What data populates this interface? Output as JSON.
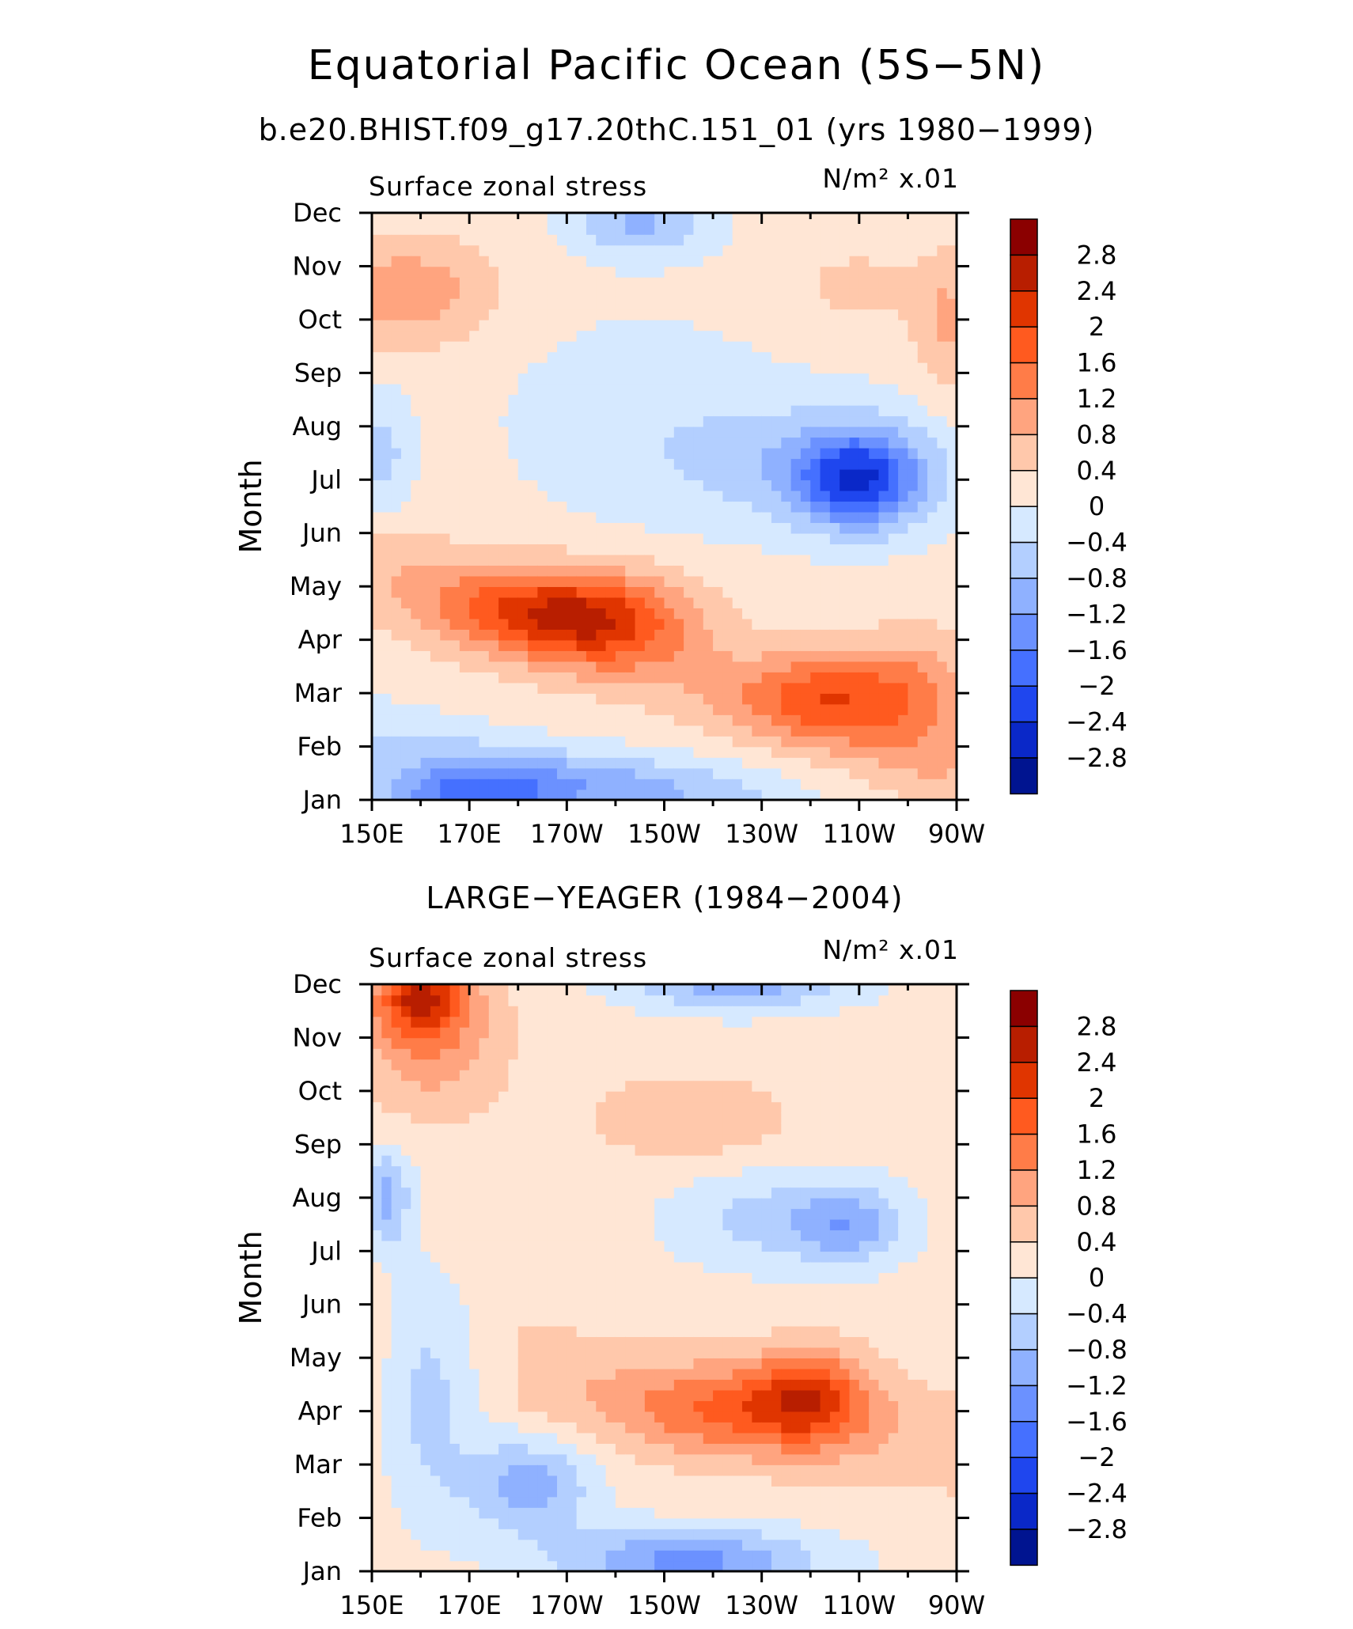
{
  "figure": {
    "title": "Equatorial Pacific Ocean (5S−5N)",
    "subtitle": "b.e20.BHIST.f09_g17.20thC.151_01 (yrs 1980−1999)"
  },
  "chart_data": [
    {
      "type": "heatmap",
      "title": "",
      "left_label": "Surface zonal stress",
      "units_label": "N/m² x.01",
      "xlabel": "",
      "ylabel": "Month",
      "x_ticks": [
        "150E",
        "170E",
        "170W",
        "150W",
        "130W",
        "110W",
        "90W"
      ],
      "x_lon": [
        150,
        170,
        190,
        210,
        230,
        250,
        270
      ],
      "y_ticks": [
        "Jan",
        "Feb",
        "Mar",
        "Apr",
        "May",
        "Jun",
        "Jul",
        "Aug",
        "Sep",
        "Oct",
        "Nov",
        "Dec"
      ],
      "xlim": [
        150,
        270
      ],
      "ylim": [
        1,
        12
      ],
      "contour_levels": [
        -2.8,
        -2.4,
        -2,
        -1.6,
        -1.2,
        -0.8,
        -0.4,
        0,
        0.4,
        0.8,
        1.2,
        1.6,
        2,
        2.4,
        2.8
      ],
      "features": [
        {
          "type": "max",
          "lon": 197,
          "month": 4.4,
          "value": 1.5,
          "sx": 20,
          "sy": 0.9
        },
        {
          "type": "max",
          "lon": 244,
          "month": 3.0,
          "value": 1.4,
          "sx": 17,
          "sy": 0.85
        },
        {
          "type": "max",
          "lon": 180,
          "month": 4.6,
          "value": 0.9,
          "sx": 22,
          "sy": 0.8
        },
        {
          "type": "max",
          "lon": 262,
          "month": 3.0,
          "value": 0.8,
          "sx": 12,
          "sy": 1.2
        },
        {
          "type": "max",
          "lon": 157,
          "month": 10.5,
          "value": 0.95,
          "sx": 18,
          "sy": 1.0
        },
        {
          "type": "max",
          "lon": 250,
          "month": 10.6,
          "value": 0.6,
          "sx": 10,
          "sy": 0.55
        },
        {
          "type": "max",
          "lon": 268,
          "month": 10.0,
          "value": 0.75,
          "sx": 7,
          "sy": 1.3
        },
        {
          "type": "min",
          "lon": 250,
          "month": 7.0,
          "value": -2.1,
          "sx": 13,
          "sy": 0.9
        },
        {
          "type": "min",
          "lon": 240,
          "month": 7.3,
          "value": -0.7,
          "sx": 30,
          "sy": 1.2
        },
        {
          "type": "min",
          "lon": 170,
          "month": 1.1,
          "value": -1.55,
          "sx": 18,
          "sy": 0.55
        },
        {
          "type": "min",
          "lon": 200,
          "month": 1.3,
          "value": -0.6,
          "sx": 40,
          "sy": 0.6
        },
        {
          "type": "min",
          "lon": 205,
          "month": 11.8,
          "value": -1.0,
          "sx": 14,
          "sy": 0.6
        },
        {
          "type": "min",
          "lon": 152,
          "month": 7.5,
          "value": -0.7,
          "sx": 6,
          "sy": 1.2
        }
      ],
      "background_value": 0.15,
      "description_band": "0.4 to 1.2 band running from Jun near 150E to Jan near 90W"
    },
    {
      "type": "heatmap",
      "title": "LARGE−YEAGER (1984−2004)",
      "left_label": "Surface zonal stress",
      "units_label": "N/m² x.01",
      "xlabel": "",
      "ylabel": "Month",
      "x_ticks": [
        "150E",
        "170E",
        "170W",
        "150W",
        "130W",
        "110W",
        "90W"
      ],
      "x_lon": [
        150,
        170,
        190,
        210,
        230,
        250,
        270
      ],
      "y_ticks": [
        "Jan",
        "Feb",
        "Mar",
        "Apr",
        "May",
        "Jun",
        "Jul",
        "Aug",
        "Sep",
        "Oct",
        "Nov",
        "Dec"
      ],
      "xlim": [
        150,
        270
      ],
      "ylim": [
        1,
        12
      ],
      "contour_levels": [
        -2.8,
        -2.4,
        -2,
        -1.6,
        -1.2,
        -0.8,
        -0.4,
        0,
        0.4,
        0.8,
        1.2,
        1.6,
        2,
        2.4,
        2.8
      ],
      "features": [
        {
          "type": "max",
          "lon": 160,
          "month": 11.8,
          "value": 1.8,
          "sx": 9,
          "sy": 0.7
        },
        {
          "type": "max",
          "lon": 162,
          "month": 11.0,
          "value": 1.0,
          "sx": 15,
          "sy": 1.4
        },
        {
          "type": "max",
          "lon": 240,
          "month": 4.3,
          "value": 1.45,
          "sx": 12,
          "sy": 0.9
        },
        {
          "type": "max",
          "lon": 222,
          "month": 4.0,
          "value": 1.0,
          "sx": 22,
          "sy": 0.85
        },
        {
          "type": "max",
          "lon": 215,
          "month": 9.5,
          "value": 0.65,
          "sx": 20,
          "sy": 0.8
        },
        {
          "type": "min",
          "lon": 225,
          "month": 12.1,
          "value": -1.3,
          "sx": 22,
          "sy": 0.55
        },
        {
          "type": "min",
          "lon": 182,
          "month": 2.6,
          "value": -1.2,
          "sx": 13,
          "sy": 0.9
        },
        {
          "type": "min",
          "lon": 215,
          "month": 1.2,
          "value": -1.5,
          "sx": 26,
          "sy": 0.6
        },
        {
          "type": "min",
          "lon": 248,
          "month": 7.5,
          "value": -1.0,
          "sx": 11,
          "sy": 0.7
        },
        {
          "type": "min",
          "lon": 232,
          "month": 7.6,
          "value": -0.7,
          "sx": 20,
          "sy": 0.9
        },
        {
          "type": "min",
          "lon": 153,
          "month": 8.0,
          "value": -1.1,
          "sx": 5,
          "sy": 0.9
        },
        {
          "type": "min",
          "lon": 162,
          "month": 4.5,
          "value": -0.75,
          "sx": 9,
          "sy": 2.2
        }
      ],
      "background_value": 0.15,
      "description_band": "0 to 0.4 background with positive band Mar-May east of 170W"
    }
  ],
  "colorbar": {
    "labels": [
      "2.8",
      "2.4",
      "2",
      "1.6",
      "1.2",
      "0.8",
      "0.4",
      "0",
      "−0.4",
      "−0.8",
      "−1.2",
      "−1.6",
      "−2",
      "−2.4",
      "−2.8"
    ],
    "colors": [
      "#8b0000",
      "#b81e00",
      "#e03500",
      "#ff5a1f",
      "#ff7c48",
      "#ffa47f",
      "#ffc8ab",
      "#ffe6d5",
      "#d6e9ff",
      "#b3cfff",
      "#8fb1ff",
      "#6b91ff",
      "#4570ff",
      "#1f46ee",
      "#0a28c8",
      "#001490"
    ]
  }
}
